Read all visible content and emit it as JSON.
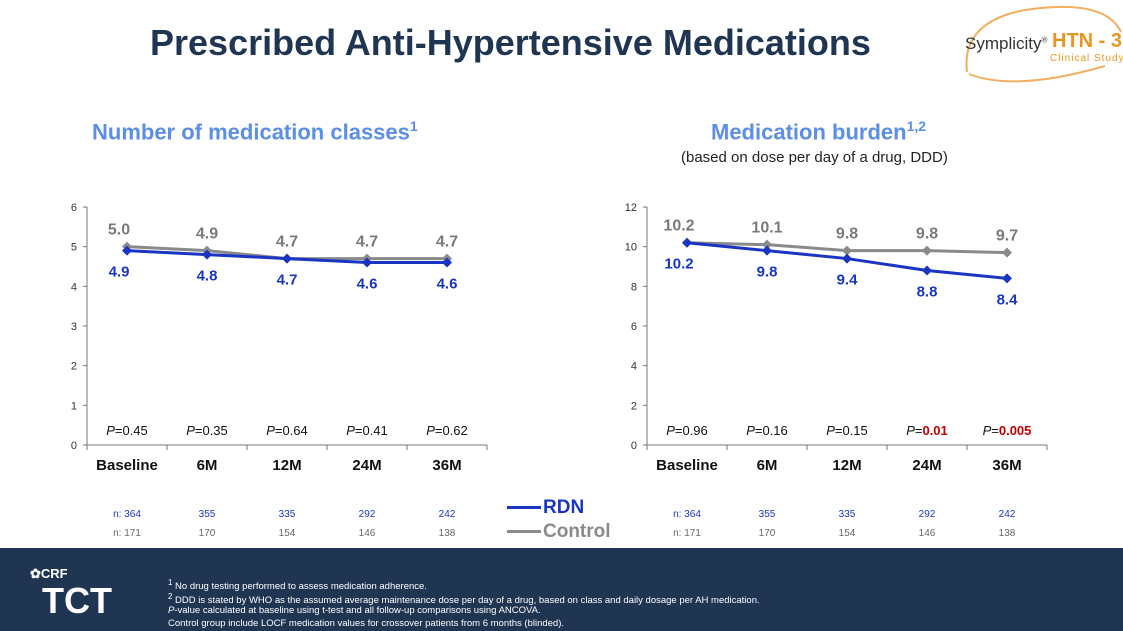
{
  "title": "Prescribed Anti-Hypertensive Medications",
  "logo": {
    "brand": "Symplicity",
    "mark": "®",
    "study": "HTN - 3",
    "subtitle": "Clinical Study"
  },
  "left": {
    "title": "Number of medication classes",
    "title_sup": "1",
    "n_rdn": [
      "n:  364",
      "355",
      "335",
      "292",
      "242"
    ],
    "n_control": [
      "n:  171",
      "170",
      "154",
      "146",
      "138"
    ]
  },
  "right": {
    "title": "Medication burden",
    "title_sup": "1,2",
    "subtitle": "(based on dose per day of a drug, DDD)",
    "n_rdn": [
      "n:  364",
      "355",
      "335",
      "292",
      "242"
    ],
    "n_control": [
      "n:  171",
      "170",
      "154",
      "146",
      "138"
    ]
  },
  "legend": {
    "rdn": "RDN",
    "control": "Control"
  },
  "colors": {
    "rdn": "#1a35c4",
    "control": "#8a8a8a",
    "title_blue": "#5b8ee6",
    "dark": "#1f3552",
    "sig_red": "#c00000"
  },
  "chart_data": [
    {
      "type": "line",
      "categories": [
        "Baseline",
        "6M",
        "12M",
        "24M",
        "36M"
      ],
      "ylim": [
        0,
        6
      ],
      "yticks": [
        0,
        1,
        2,
        3,
        4,
        5,
        6
      ],
      "series": [
        {
          "name": "Control",
          "values": [
            5.0,
            4.9,
            4.7,
            4.7,
            4.7
          ],
          "labels": [
            "5.0",
            "4.9",
            "4.7",
            "4.7",
            "4.7"
          ]
        },
        {
          "name": "RDN",
          "values": [
            4.9,
            4.8,
            4.7,
            4.6,
            4.6
          ],
          "labels": [
            "4.9",
            "4.8",
            "4.7",
            "4.6",
            "4.6"
          ]
        }
      ],
      "pvalues": [
        "0.45",
        "0.35",
        "0.64",
        "0.41",
        "0.62"
      ],
      "significant": [
        false,
        false,
        false,
        false,
        false
      ]
    },
    {
      "type": "line",
      "categories": [
        "Baseline",
        "6M",
        "12M",
        "24M",
        "36M"
      ],
      "ylim": [
        0,
        12
      ],
      "yticks": [
        0,
        2,
        4,
        6,
        8,
        10,
        12
      ],
      "series": [
        {
          "name": "Control",
          "values": [
            10.2,
            10.1,
            9.8,
            9.8,
            9.7
          ],
          "labels": [
            "10.2",
            "10.1",
            "9.8",
            "9.8",
            "9.7"
          ]
        },
        {
          "name": "RDN",
          "values": [
            10.2,
            9.8,
            9.4,
            8.8,
            8.4
          ],
          "labels": [
            "10.2",
            "9.8",
            "9.4",
            "8.8",
            "8.4"
          ]
        }
      ],
      "pvalues": [
        "0.96",
        "0.16",
        "0.15",
        "0.01",
        "0.005"
      ],
      "significant": [
        false,
        false,
        false,
        true,
        true
      ]
    }
  ],
  "footnotes": {
    "fn1_mark": "1",
    "fn1": " No drug testing performed to assess medication adherence.",
    "fn2_mark": "2",
    "fn2": " DDD is stated by WHO as the assumed average maintenance dose per day of a drug, based on class and daily dosage per AH medication.",
    "fn3_p": "P",
    "fn3": "-value calculated at baseline using t-test and all follow-up comparisons using ANCOVA.",
    "fn4": "Control group include LOCF medication values for crossover patients from 6 months (blinded)."
  },
  "footer_logo": {
    "crf": "CRF",
    "tct": "TCT"
  }
}
